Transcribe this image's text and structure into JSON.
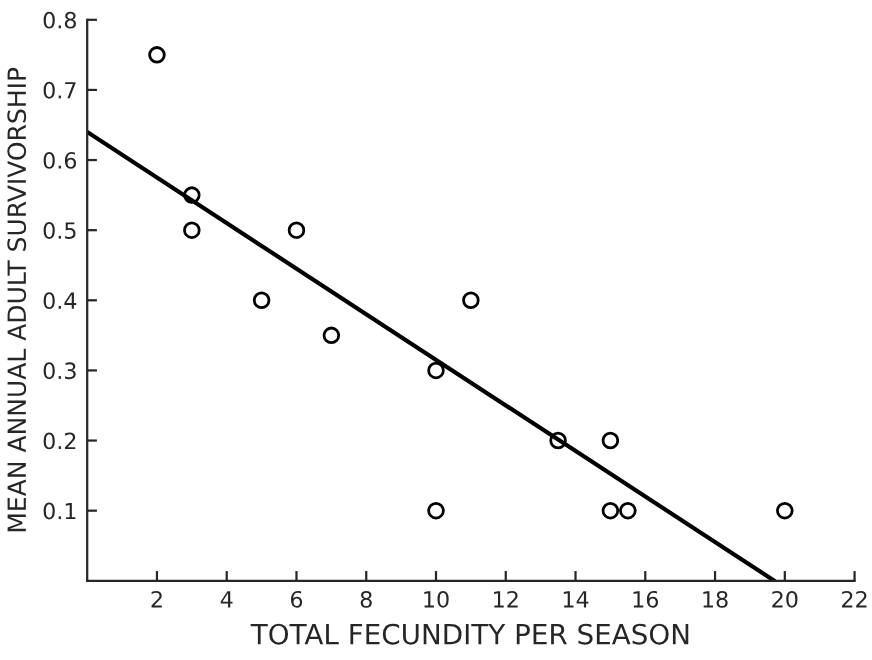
{
  "chart_data": {
    "type": "scatter",
    "xlabel": "TOTAL FECUNDITY PER SEASON",
    "ylabel": "MEAN ANNUAL ADULT SURVIVORSHIP",
    "xlim": [
      0,
      22
    ],
    "xticks": [
      2,
      4,
      6,
      8,
      10,
      12,
      14,
      16,
      18,
      20,
      22
    ],
    "ylim": [
      0,
      0.8
    ],
    "yticks": [
      0.1,
      0.2,
      0.3,
      0.4,
      0.5,
      0.6,
      0.7,
      0.8
    ],
    "grid": false,
    "series": [
      {
        "color": "#000000",
        "marker": "circle",
        "x": [
          2,
          3,
          3,
          5,
          6,
          7,
          10,
          10,
          11,
          13.5,
          15,
          15,
          15.5,
          20
        ],
        "values": [
          0.75,
          0.55,
          0.5,
          0.4,
          0.5,
          0.35,
          0.3,
          0.1,
          0.4,
          0.2,
          0.2,
          0.1,
          0.1,
          0.1
        ]
      },
      {
        "type": "line",
        "color": "#000000",
        "marker": "none",
        "line_style": "solid",
        "x": [
          0,
          19.7
        ],
        "values": [
          0.64,
          0
        ]
      }
    ]
  }
}
